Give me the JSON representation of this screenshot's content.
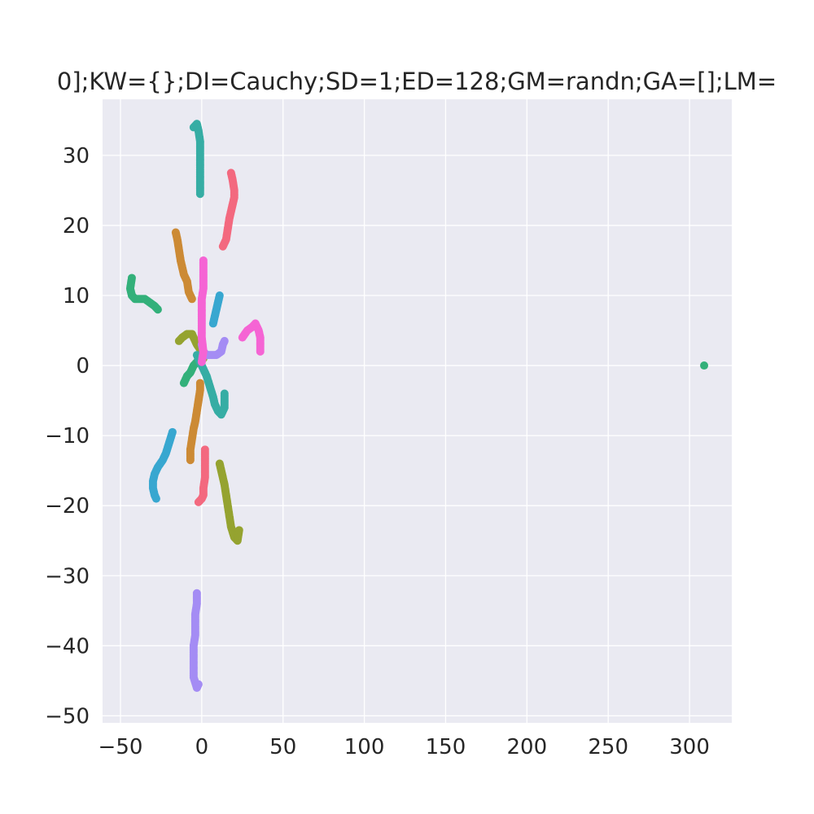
{
  "chart_data": {
    "type": "scatter",
    "title": "0];KW={};DI=Cauchy;SD=1;ED=128;GM=randn;GA=[];LM=",
    "xlabel": "",
    "ylabel": "",
    "xlim": [
      -61,
      326
    ],
    "ylim": [
      -51,
      38
    ],
    "grid": true,
    "x_ticks": [
      -50,
      0,
      50,
      100,
      150,
      200,
      250,
      300
    ],
    "y_ticks": [
      -50,
      -40,
      -30,
      -20,
      -10,
      0,
      10,
      20,
      30
    ],
    "series": [
      {
        "color": "#f3697f",
        "points": [
          [
            18,
            27.5
          ],
          [
            19,
            26.5
          ],
          [
            20,
            25
          ],
          [
            20,
            24
          ],
          [
            19,
            23
          ],
          [
            18,
            22
          ],
          [
            17,
            21
          ],
          [
            16,
            19.5
          ],
          [
            15,
            18
          ],
          [
            13,
            17
          ]
        ]
      },
      {
        "color": "#f3697f",
        "points": [
          [
            2,
            -12
          ],
          [
            2,
            -13
          ],
          [
            2,
            -14.5
          ],
          [
            2,
            -16
          ],
          [
            1,
            -17.5
          ],
          [
            1,
            -18.5
          ],
          [
            0,
            -19
          ],
          [
            -2,
            -19.5
          ]
        ]
      },
      {
        "color": "#cc8a35",
        "points": [
          [
            -16,
            19
          ],
          [
            -15,
            18
          ],
          [
            -14,
            16.5
          ],
          [
            -13,
            15
          ],
          [
            -12,
            14
          ],
          [
            -11,
            13
          ],
          [
            -9,
            12
          ],
          [
            -8,
            10.5
          ],
          [
            -6,
            9.5
          ]
        ]
      },
      {
        "color": "#cc8a35",
        "points": [
          [
            -1,
            -2.5
          ],
          [
            -1,
            -3.5
          ],
          [
            -2,
            -5
          ],
          [
            -3,
            -6.5
          ],
          [
            -4,
            -8
          ],
          [
            -5,
            -9
          ],
          [
            -6,
            -10.5
          ],
          [
            -7,
            -12
          ],
          [
            -7,
            -13.5
          ]
        ]
      },
      {
        "color": "#95a330",
        "points": [
          [
            -14,
            3.5
          ],
          [
            -12,
            4
          ],
          [
            -9,
            4.5
          ],
          [
            -6,
            4.5
          ],
          [
            -3,
            3
          ],
          [
            0,
            2
          ],
          [
            1,
            1
          ]
        ]
      },
      {
        "color": "#95a330",
        "points": [
          [
            11,
            -14
          ],
          [
            12,
            -15
          ],
          [
            14,
            -17
          ],
          [
            15,
            -18.5
          ],
          [
            16,
            -20
          ],
          [
            17,
            -21.5
          ],
          [
            18,
            -23
          ],
          [
            20,
            -24.5
          ],
          [
            22,
            -25
          ],
          [
            23,
            -23.5
          ]
        ]
      },
      {
        "color": "#33b07a",
        "points": [
          [
            -43,
            12.5
          ],
          [
            -44,
            11
          ],
          [
            -43,
            10
          ],
          [
            -41,
            9.5
          ],
          [
            -38,
            9.5
          ],
          [
            -35,
            9.5
          ],
          [
            -32,
            9
          ],
          [
            -29,
            8.5
          ],
          [
            -27,
            8
          ]
        ]
      },
      {
        "color": "#33b07a",
        "points": [
          [
            -11,
            -2.5
          ],
          [
            -9,
            -1.5
          ],
          [
            -7,
            -1
          ],
          [
            -5,
            0
          ],
          [
            -3,
            0.5
          ],
          [
            -1,
            1
          ]
        ]
      },
      {
        "color": "#33b07a",
        "points": [
          [
            309,
            0
          ]
        ]
      },
      {
        "color": "#36ada4",
        "points": [
          [
            -5,
            34
          ],
          [
            -3,
            34.5
          ],
          [
            -2,
            33.5
          ],
          [
            -1,
            32
          ],
          [
            -1,
            30.5
          ],
          [
            -1,
            29
          ],
          [
            -1,
            27.5
          ],
          [
            -1,
            26
          ],
          [
            -1,
            24.5
          ]
        ]
      },
      {
        "color": "#36ada4",
        "points": [
          [
            -3,
            1.5
          ],
          [
            0,
            0
          ],
          [
            3,
            -1.5
          ],
          [
            5,
            -3
          ],
          [
            7,
            -4.5
          ],
          [
            8,
            -5.5
          ],
          [
            10,
            -6.5
          ],
          [
            12,
            -7
          ],
          [
            14,
            -6
          ],
          [
            14,
            -4
          ]
        ]
      },
      {
        "color": "#38a7d0",
        "points": [
          [
            11,
            10
          ],
          [
            10,
            9
          ],
          [
            9,
            8
          ],
          [
            8,
            7
          ],
          [
            7,
            6
          ]
        ]
      },
      {
        "color": "#38a7d0",
        "points": [
          [
            -18,
            -9.5
          ],
          [
            -20,
            -11
          ],
          [
            -22,
            -12.5
          ],
          [
            -24,
            -13.5
          ],
          [
            -27,
            -14.5
          ],
          [
            -29,
            -15.5
          ],
          [
            -30,
            -16.5
          ],
          [
            -30,
            -17.5
          ],
          [
            -29,
            -18.5
          ],
          [
            -28,
            -19
          ]
        ]
      },
      {
        "color": "#a48cf4",
        "points": [
          [
            0,
            3
          ],
          [
            1,
            2
          ],
          [
            3,
            1.5
          ],
          [
            6,
            1.5
          ],
          [
            9,
            1.5
          ],
          [
            12,
            2
          ],
          [
            13,
            3
          ],
          [
            14,
            3.5
          ]
        ]
      },
      {
        "color": "#a48cf4",
        "points": [
          [
            -3,
            -32.5
          ],
          [
            -3,
            -34
          ],
          [
            -4,
            -35.5
          ],
          [
            -4,
            -37
          ],
          [
            -4,
            -38.5
          ],
          [
            -5,
            -40
          ],
          [
            -5,
            -41.5
          ],
          [
            -5,
            -43
          ],
          [
            -5,
            -44.5
          ],
          [
            -3,
            -46
          ],
          [
            -2,
            -45.5
          ]
        ]
      },
      {
        "color": "#f564d4",
        "points": [
          [
            1,
            15
          ],
          [
            1,
            14
          ],
          [
            1,
            12.5
          ],
          [
            1,
            11
          ],
          [
            0,
            9.5
          ],
          [
            0,
            8
          ],
          [
            0,
            7
          ],
          [
            0,
            6
          ],
          [
            0,
            4
          ],
          [
            1,
            2
          ],
          [
            0,
            0.5
          ]
        ]
      },
      {
        "color": "#f564d4",
        "points": [
          [
            25,
            4
          ],
          [
            28,
            5
          ],
          [
            31,
            5.5
          ],
          [
            33,
            6
          ],
          [
            35,
            5
          ],
          [
            36,
            4
          ],
          [
            36,
            3
          ],
          [
            36,
            2
          ]
        ]
      }
    ]
  }
}
